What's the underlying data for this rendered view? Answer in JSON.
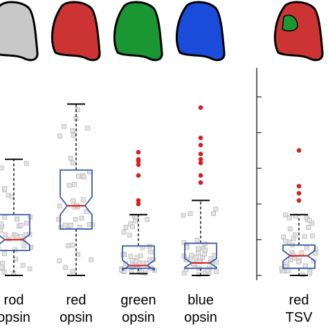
{
  "chart_data": [
    {
      "type": "box",
      "title": "",
      "xlabel": "",
      "ylabel": "",
      "ylim": [
        0,
        10
      ],
      "categories": [
        {
          "label_line1": "rod",
          "label_line2": "opsin",
          "cell_fill": "#c8c8c8",
          "whisker_low": 0,
          "q1": 1.4,
          "median": 2.0,
          "q3": 3.4,
          "whisker_high": 6.5,
          "notch_low": 1.7,
          "notch_high": 2.3,
          "outliers": []
        },
        {
          "label_line1": "red",
          "label_line2": "opsin",
          "cell_fill": "#cc3333",
          "whisker_low": 0,
          "q1": 2.6,
          "median": 3.9,
          "q3": 5.9,
          "whisker_high": 9.6,
          "notch_low": 3.4,
          "notch_high": 4.4,
          "outliers": []
        },
        {
          "label_line1": "green",
          "label_line2": "opsin",
          "cell_fill": "#1a9632",
          "whisker_low": 0.1,
          "q1": 0.4,
          "median": 0.55,
          "q3": 1.65,
          "whisker_high": 3.4,
          "notch_low": 0.3,
          "notch_high": 0.85,
          "outliers": [
            4.0,
            4.2,
            5.6,
            6.2,
            6.4,
            6.5,
            6.9
          ]
        },
        {
          "label_line1": "blue",
          "label_line2": "opsin",
          "cell_fill": "#1a4bd9",
          "whisker_low": 0,
          "q1": 0.4,
          "median": 0.7,
          "q3": 1.8,
          "whisker_high": 4.2,
          "notch_low": 0.45,
          "notch_high": 0.95,
          "outliers": [
            5.2,
            5.6,
            6.3,
            6.5,
            6.8,
            7.3,
            7.7,
            9.4
          ]
        }
      ]
    },
    {
      "type": "box",
      "title": "",
      "xlabel": "",
      "ylabel": "",
      "ylim": [
        0,
        10
      ],
      "categories": [
        {
          "label_line1": "red",
          "label_line2": "TSV",
          "cell_fill": "#cc3333",
          "inner_fill": "#1a9632",
          "whisker_low": 0,
          "q1": 0.4,
          "median": 1.1,
          "q3": 1.7,
          "whisker_high": 3.4,
          "notch_low": 0.8,
          "notch_high": 1.4,
          "outliers": [
            4.2,
            4.6,
            5.0,
            7.0
          ]
        }
      ]
    }
  ]
}
